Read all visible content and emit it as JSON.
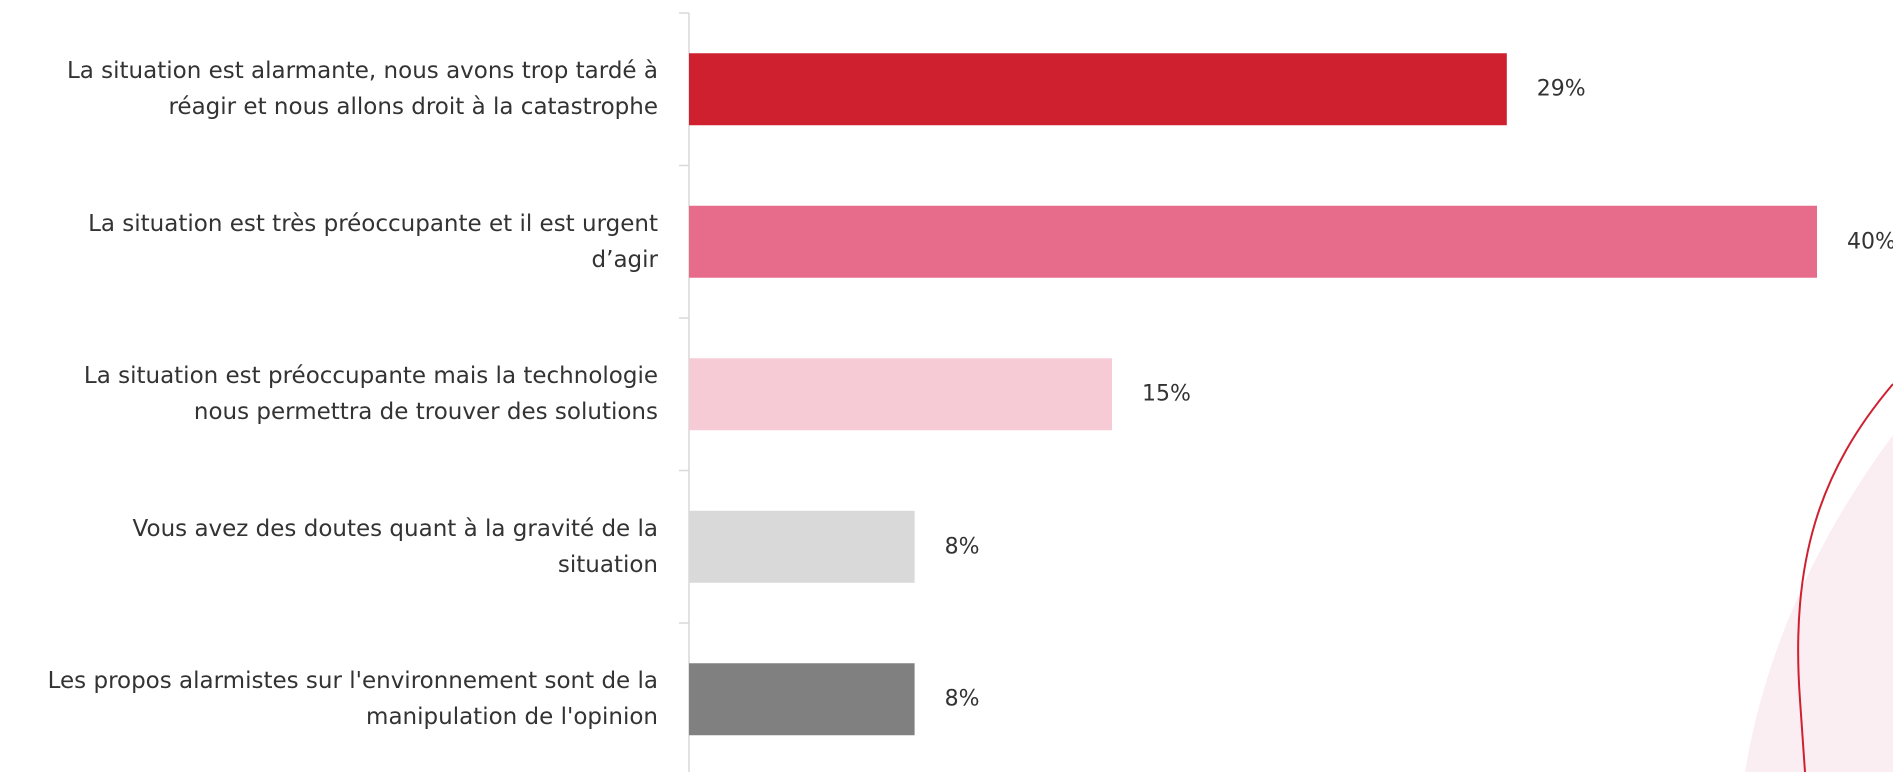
{
  "chart_data": {
    "type": "bar",
    "orientation": "horizontal",
    "categories": [
      "La situation est alarmante, nous avons trop tardé à\nréagir et nous allons droit à la catastrophe",
      "La situation est très préoccupante et il est urgent\nd’agir",
      "La situation est préoccupante mais la technologie\nnous permettra de trouver des solutions",
      "Vous avez des doutes quant à la gravité de la\nsituation",
      "Les propos alarmistes sur l'environnement sont de la\nmanipulation de l'opinion"
    ],
    "values": [
      29,
      40,
      15,
      8,
      8
    ],
    "value_labels": [
      "29%",
      "40%",
      "15%",
      "8%",
      "8%"
    ],
    "colors": [
      "#cf2030",
      "#e76c8b",
      "#f7cbd5",
      "#d9d9d9",
      "#808080"
    ]
  }
}
